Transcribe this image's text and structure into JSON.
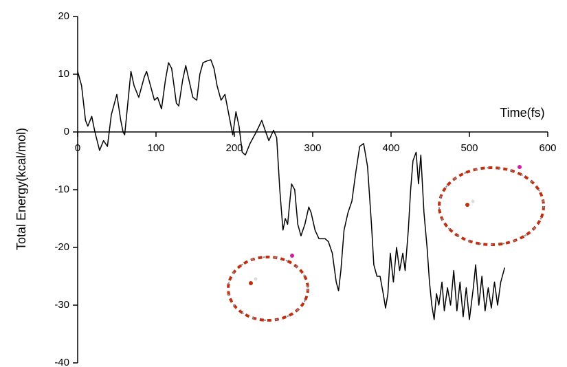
{
  "chart_data": {
    "type": "line",
    "x_label": "Time(fs)",
    "y_label": "Total Energy(kcal/mol)",
    "x": [
      0,
      5,
      10,
      13,
      18,
      22,
      28,
      33,
      38,
      43,
      50,
      55,
      58,
      60,
      64,
      68,
      72,
      78,
      85,
      88,
      93,
      98,
      102,
      107,
      112,
      116,
      120,
      126,
      129,
      134,
      138,
      142,
      147,
      152,
      156,
      160,
      165,
      170,
      174,
      178,
      183,
      188,
      193,
      198,
      202,
      206,
      210,
      214,
      220,
      228,
      235,
      240,
      244,
      250,
      254,
      258,
      262,
      265,
      268,
      273,
      277,
      281,
      285,
      290,
      295,
      298,
      303,
      308,
      316,
      320,
      325,
      330,
      333,
      336,
      340,
      345,
      350,
      355,
      360,
      365,
      370,
      375,
      378,
      382,
      386,
      390,
      393,
      396,
      399,
      403,
      407,
      411,
      415,
      418,
      422,
      425,
      428,
      432,
      435,
      438,
      442,
      446,
      449,
      452,
      455,
      458,
      461,
      465,
      468,
      472,
      476,
      480,
      484,
      488,
      492,
      496,
      500,
      505,
      508,
      512,
      516,
      520,
      524,
      528,
      532,
      536,
      540,
      545
    ],
    "values": [
      10.5,
      8,
      2,
      1,
      2.7,
      0,
      -3.2,
      -1.5,
      -2.5,
      3,
      6.5,
      2,
      0,
      -0.5,
      5,
      10.5,
      8,
      6,
      9.5,
      10.5,
      8,
      5.5,
      6,
      4,
      9,
      12,
      11,
      5,
      4.5,
      9,
      11.5,
      9,
      6,
      5.5,
      10,
      12,
      12.3,
      12.5,
      11,
      8,
      5.5,
      6.5,
      3,
      -0.5,
      3.5,
      1,
      -3.5,
      -4,
      -2,
      0,
      2,
      0,
      -1.5,
      0.3,
      -1,
      -10,
      -17,
      -15,
      -16,
      -9,
      -10,
      -16,
      -18,
      -16,
      -13,
      -14,
      -17,
      -18.5,
      -18.5,
      -19,
      -21,
      -26,
      -27.5,
      -24,
      -17,
      -14,
      -12,
      -7,
      -2.5,
      -2,
      -6,
      -16,
      -23,
      -25,
      -25,
      -28,
      -30.5,
      -28,
      -21,
      -26,
      -20,
      -24,
      -21,
      -24,
      -17,
      -10,
      -5,
      -3.5,
      -9,
      -4,
      -14,
      -20,
      -26,
      -30,
      -32.5,
      -28,
      -30,
      -26,
      -31,
      -27,
      -30,
      -24,
      -31,
      -26,
      -32,
      -27,
      -32.5,
      -27,
      -23,
      -30,
      -25,
      -31,
      -27,
      -30.5,
      -26,
      -30,
      -26,
      -23.5
    ],
    "color": "#000000",
    "xlim": [
      0,
      600
    ],
    "xticks": [
      0,
      100,
      200,
      300,
      400,
      500,
      600
    ],
    "ylim": [
      -40,
      20
    ],
    "yticks": [
      -40,
      -30,
      -20,
      -10,
      0,
      10,
      20
    ]
  }
}
